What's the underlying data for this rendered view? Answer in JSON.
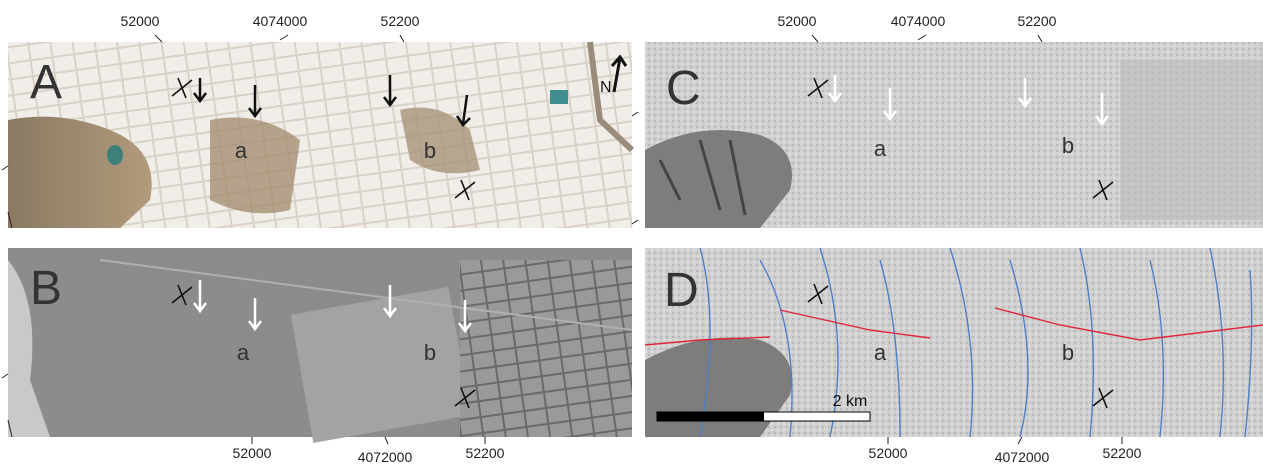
{
  "top_labels": {
    "left": [
      "52000",
      "4074000",
      "52200"
    ],
    "right": [
      "52000",
      "4074000",
      "52200"
    ]
  },
  "bottom_labels": {
    "left": [
      "52000",
      "4072000",
      "52200"
    ],
    "right": [
      "52000",
      "4072000",
      "52200"
    ]
  },
  "panels": [
    {
      "letter": "A",
      "features": [
        "a",
        "b"
      ]
    },
    {
      "letter": "B",
      "features": [
        "a",
        "b"
      ]
    },
    {
      "letter": "C",
      "features": [
        "a",
        "b"
      ]
    },
    {
      "letter": "D",
      "features": [
        "a",
        "b"
      ]
    }
  ],
  "north": "N",
  "scale": "2 km"
}
